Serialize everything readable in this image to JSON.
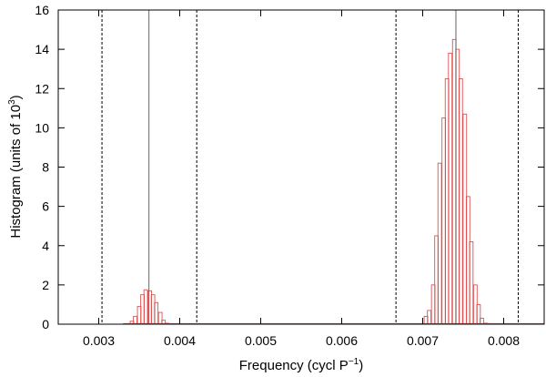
{
  "chart_data": {
    "type": "bar",
    "xlabel": {
      "base": "Frequency (cycl P",
      "sup": "−1",
      "tail": ")"
    },
    "ylabel": {
      "base": "Histogram (units of 10",
      "sup": "3",
      "tail": ")"
    },
    "xlim": [
      0.0025,
      0.0085
    ],
    "ylim": [
      0,
      16
    ],
    "x_ticks": [
      0.003,
      0.004,
      0.005,
      0.006,
      0.007,
      0.008
    ],
    "x_tick_labels": [
      "0.003",
      "0.004",
      "0.005",
      "0.006",
      "0.007",
      "0.008"
    ],
    "y_ticks": [
      0,
      2,
      4,
      6,
      8,
      10,
      12,
      14,
      16
    ],
    "y_tick_labels": [
      "0",
      "2",
      "4",
      "6",
      "8",
      "10",
      "12",
      "14",
      "16"
    ],
    "bin_width": 4.35e-05,
    "bar_color": "#e05050",
    "series": [
      {
        "x": [
          0.00341,
          0.00345,
          0.0035,
          0.00354,
          0.00358,
          0.00363,
          0.00367,
          0.00371,
          0.00376,
          0.0038,
          0.00384
        ],
        "values": [
          0.15,
          0.4,
          0.9,
          1.5,
          1.75,
          1.7,
          1.5,
          1.1,
          0.6,
          0.2,
          0.05
        ]
      },
      {
        "x": [
          0.00704,
          0.00708,
          0.00713,
          0.00717,
          0.00721,
          0.00726,
          0.0073,
          0.00734,
          0.00739,
          0.00743,
          0.00747,
          0.00752,
          0.00756,
          0.0076,
          0.00765,
          0.00769,
          0.00773,
          0.00778
        ],
        "values": [
          0.4,
          0.7,
          2.0,
          4.5,
          8.2,
          10.5,
          12.5,
          13.8,
          14.5,
          14.0,
          12.5,
          10.7,
          6.5,
          4.2,
          2.0,
          1.0,
          0.3,
          0.05
        ]
      }
    ],
    "solid_lines": [
      0.00362,
      0.00741
    ],
    "dashed_lines": [
      0.00304,
      0.00421,
      0.00667,
      0.00818
    ]
  }
}
